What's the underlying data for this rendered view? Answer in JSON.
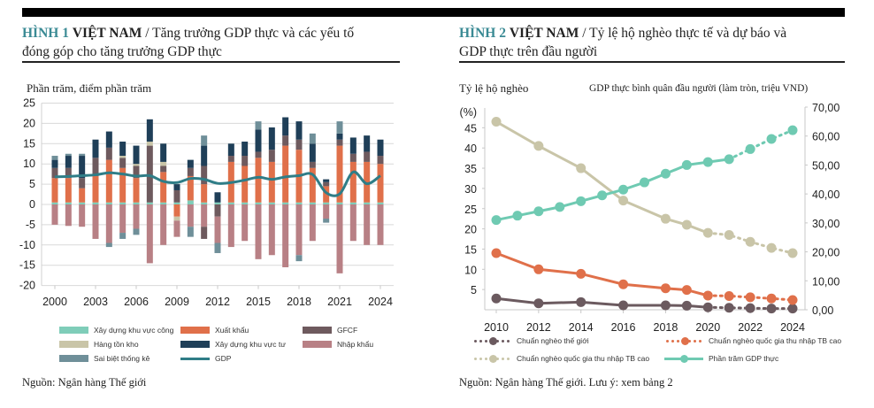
{
  "figure1": {
    "num": "HÌNH 1",
    "country": "VIỆT NAM",
    "title_rest": " / Tăng trưởng GDP thực và các yếu tố",
    "title_line2": "đóng góp cho tăng trưởng GDP thực",
    "unit_label": "Phần trăm, điểm phần trăm",
    "source": "Nguồn: Ngân hàng Thế giới"
  },
  "figure2": {
    "num": "HÌNH 2",
    "country": "VIỆT NAM",
    "title_rest": " / Tỷ lệ hộ nghèo thực tế và dự báo và",
    "title_line2": "GDP thực trên đầu người",
    "left_axis_label": "Tỷ lệ hộ nghèo",
    "left_axis_unit": "(%)",
    "right_axis_label": "GDP thực bình quân đầu người (làm tròn, triệu VND)",
    "source": "Nguồn: Ngân hàng Thế giới. Lưu ý: xem bảng 2"
  },
  "chart_data": [
    {
      "type": "bar",
      "stacked": true,
      "title": "Tăng trưởng GDP thực và các yếu tố đóng góp cho tăng trưởng GDP thực",
      "ylabel": "Phần trăm, điểm phần trăm",
      "xlabel": "",
      "ylim": [
        -20,
        25
      ],
      "yticks": [
        "25",
        "20",
        "15",
        "10",
        "5",
        "0",
        "-5",
        "-10",
        "-15",
        "-20"
      ],
      "ytick_values": [
        25,
        20,
        15,
        10,
        5,
        0,
        -5,
        -10,
        -15,
        -20
      ],
      "xtick_labels": [
        "2000",
        "2003",
        "2006",
        "2009",
        "2012",
        "2015",
        "2018",
        "2021",
        "2024"
      ],
      "grid": true,
      "legend_position": "bottom",
      "categories": [
        "2000",
        "2001",
        "2002",
        "2003",
        "2004",
        "2005",
        "2006",
        "2007",
        "2008",
        "2009",
        "2010",
        "2011",
        "2012",
        "2013",
        "2014",
        "2015",
        "2016",
        "2017",
        "2018",
        "2019",
        "2020",
        "2021",
        "2022",
        "2023",
        "2024"
      ],
      "series": [
        {
          "name": "Xây dựng khu vực công",
          "color": "#7fcdb9",
          "values": [
            0.5,
            0.5,
            0.5,
            0.5,
            0.5,
            0.5,
            0.5,
            0.5,
            0.5,
            0.5,
            1.0,
            0.5,
            0.5,
            0.5,
            0.5,
            0.5,
            0.5,
            0.5,
            0.5,
            0.5,
            0.5,
            0.5,
            0.5,
            0.5,
            0.5
          ]
        },
        {
          "name": "Xuất khẩu",
          "color": "#e0704a",
          "values": [
            6.0,
            6.0,
            3.5,
            6.5,
            10.5,
            8.5,
            6.0,
            0,
            7.5,
            -3.0,
            6.0,
            4.5,
            0,
            10.0,
            9.0,
            11.0,
            10.0,
            14.0,
            13.0,
            8.5,
            4.0,
            14.0,
            10.0,
            10.0,
            9.5
          ]
        },
        {
          "name": "GFCF",
          "color": "#6e5a5e",
          "values": [
            2.5,
            2.5,
            2.5,
            4.5,
            3.0,
            2.5,
            3.0,
            14.0,
            1.5,
            3.0,
            2.0,
            4.5,
            -3.0,
            1.5,
            2.5,
            1.5,
            3.0,
            2.5,
            2.5,
            1.5,
            1.0,
            1.5,
            2.0,
            2.5,
            2.0
          ]
        },
        {
          "name": "Hàng tồn kho",
          "color": "#c9c5a8",
          "values": [
            0,
            0,
            0,
            0,
            0,
            0.5,
            0.5,
            1.0,
            1.0,
            -1.0,
            0,
            0,
            0,
            0,
            0,
            0,
            0,
            0,
            0,
            0,
            0,
            0,
            0,
            0,
            0
          ]
        },
        {
          "name": "Xây dựng khu vực tư",
          "color": "#1f3f58",
          "values": [
            2.0,
            3.0,
            5.5,
            4.5,
            4.0,
            3.5,
            4.5,
            5.5,
            4.5,
            1.5,
            2.0,
            5.0,
            2.5,
            3.0,
            3.5,
            5.5,
            5.5,
            4.5,
            4.5,
            4.5,
            0.7,
            1.5,
            4.0,
            4.0,
            4.0
          ]
        },
        {
          "name": "Sai biệt thống kê",
          "color": "#6f8f99",
          "values": [
            1.0,
            0.5,
            0.5,
            0,
            0,
            0,
            0,
            0,
            0,
            0,
            0,
            2.5,
            0,
            0,
            0,
            2.0,
            0,
            0,
            0,
            2.5,
            0,
            3.0,
            0,
            0,
            0
          ]
        },
        {
          "name": "Nhập khẩu",
          "color": "#b88085",
          "values": [
            -5.0,
            -5.3,
            -5.5,
            -8.5,
            -9.5,
            -7.0,
            -6.0,
            -14.5,
            -10.0,
            -4.0,
            -5.5,
            -5.5,
            -6.5,
            -10.5,
            -9.0,
            -13.5,
            -12.5,
            -15.5,
            -12.5,
            -9.0,
            -3.5,
            -17.0,
            -9.0,
            -10.0,
            -10.0
          ]
        },
        {
          "name": "Sai biệt thống kê (âm)",
          "color": "#6f8f99",
          "legend": false,
          "values": [
            0,
            0,
            0,
            0,
            -1.0,
            -1.5,
            -1.5,
            0,
            0,
            0,
            -2.5,
            0,
            -2.5,
            0,
            0,
            0,
            0,
            0,
            -1.5,
            0,
            -1.0,
            0,
            0,
            0,
            0
          ]
        },
        {
          "name": "GFCF (âm)",
          "color": "#6e5a5e",
          "legend": false,
          "values": [
            0,
            0,
            0,
            0,
            0,
            0,
            0,
            0,
            0,
            0,
            0,
            -3.0,
            0,
            0,
            0,
            0,
            0,
            0,
            0,
            0,
            0,
            0,
            0,
            0,
            0
          ]
        }
      ],
      "line_series": {
        "name": "GDP",
        "color": "#2f7d87",
        "values": [
          6.8,
          6.9,
          7.1,
          7.3,
          7.8,
          7.5,
          7.0,
          7.1,
          5.7,
          5.4,
          6.4,
          6.2,
          5.2,
          5.4,
          6.0,
          6.7,
          6.2,
          6.8,
          7.1,
          7.4,
          2.9,
          2.6,
          8.0,
          5.1,
          7.1
        ]
      },
      "legend": [
        {
          "label": "Xây dựng khu vực công",
          "kind": "swatch",
          "color": "#7fcdb9"
        },
        {
          "label": "Xuất khẩu",
          "kind": "swatch",
          "color": "#e0704a"
        },
        {
          "label": "GFCF",
          "kind": "swatch",
          "color": "#6e5a5e"
        },
        {
          "label": "Hàng tồn kho",
          "kind": "swatch",
          "color": "#c9c5a8"
        },
        {
          "label": "Xây dựng khu vực tư",
          "kind": "swatch",
          "color": "#1f3f58"
        },
        {
          "label": "Nhập khẩu",
          "kind": "swatch",
          "color": "#b88085"
        },
        {
          "label": "Sai biệt thống kê",
          "kind": "swatch",
          "color": "#6f8f99"
        },
        {
          "label": "GDP",
          "kind": "line",
          "color": "#2f7d87"
        }
      ]
    },
    {
      "type": "line",
      "title": "Tỷ lệ hộ nghèo thực tế và dự báo và GDP thực trên đầu người",
      "xlabel": "",
      "ylabel": "Tỷ lệ hộ nghèo (%)",
      "y2label": "GDP thực bình quân đầu người (làm tròn, triệu VND)",
      "ylim": [
        0,
        50
      ],
      "yticks": [
        "45",
        "40",
        "35",
        "30",
        "25",
        "20",
        "15",
        "10",
        "5"
      ],
      "ytick_values": [
        45,
        40,
        35,
        30,
        25,
        20,
        15,
        10,
        5
      ],
      "y2lim": [
        0,
        70
      ],
      "y2ticks": [
        "70,00",
        "60,00",
        "50,00",
        "40,00",
        "30,00",
        "20,00",
        "10,00",
        "0,00"
      ],
      "y2tick_values": [
        70,
        60,
        50,
        40,
        30,
        20,
        10,
        0
      ],
      "xtick_labels": [
        "2010",
        "2012",
        "2014",
        "2016",
        "2018",
        "2020",
        "2022",
        "2024"
      ],
      "grid": false,
      "legend_position": "bottom",
      "series": [
        {
          "name": "Chuẩn nghèo thế giới",
          "axis": "left",
          "color": "#6b5a5f",
          "x": [
            2010,
            2012,
            2014,
            2016,
            2018,
            2019,
            2020,
            2021,
            2022,
            2023,
            2024
          ],
          "y": [
            2.8,
            1.6,
            1.9,
            1.1,
            1.1,
            1.0,
            0.6,
            0.5,
            0.4,
            0.3,
            0.3
          ],
          "projected_from": 2020
        },
        {
          "name": "Chuẩn nghèo quốc gia thu nhập TB cao",
          "axis": "left",
          "color": "#e0704a",
          "x": [
            2010,
            2012,
            2014,
            2016,
            2018,
            2019,
            2020,
            2021,
            2022,
            2023,
            2024
          ],
          "y": [
            14.0,
            10.0,
            8.9,
            6.3,
            5.3,
            4.9,
            3.5,
            3.4,
            3.1,
            2.8,
            2.4
          ],
          "projected_from": 2020
        },
        {
          "name": "Chuẩn nghèo quốc gia thu nhập TB cao",
          "axis": "left",
          "color": "#c9c5a8",
          "x": [
            2010,
            2012,
            2014,
            2016,
            2018,
            2019,
            2020,
            2021,
            2022,
            2023,
            2024
          ],
          "y": [
            46.5,
            40.5,
            35.0,
            27.0,
            22.5,
            21.0,
            19.0,
            18.5,
            16.8,
            15.3,
            14.0
          ],
          "projected_from": 2020
        },
        {
          "name": "Phần trăm GDP thực",
          "axis": "right",
          "color": "#6fcab2",
          "x": [
            2010,
            2011,
            2012,
            2013,
            2014,
            2015,
            2016,
            2017,
            2018,
            2019,
            2020,
            2021,
            2022,
            2023,
            2024
          ],
          "y": [
            31.0,
            32.5,
            34.0,
            35.5,
            37.5,
            39.5,
            41.5,
            44.0,
            47.0,
            50.0,
            51.0,
            52.0,
            55.5,
            59.0,
            62.0
          ],
          "projected_from": 2021
        }
      ],
      "legend": [
        {
          "label": "Chuẩn nghèo thế giới",
          "kind": "dotted",
          "color": "#6b5a5f"
        },
        {
          "label": "Chuẩn nghèo quốc gia thu nhập TB cao",
          "kind": "dotted",
          "color": "#e0704a"
        },
        {
          "label": "Chuẩn nghèo quốc gia thu nhập TB cao",
          "kind": "dotted",
          "color": "#c9c5a8"
        },
        {
          "label": "Phần trăm GDP thực",
          "kind": "line",
          "color": "#6fcab2"
        }
      ]
    }
  ]
}
